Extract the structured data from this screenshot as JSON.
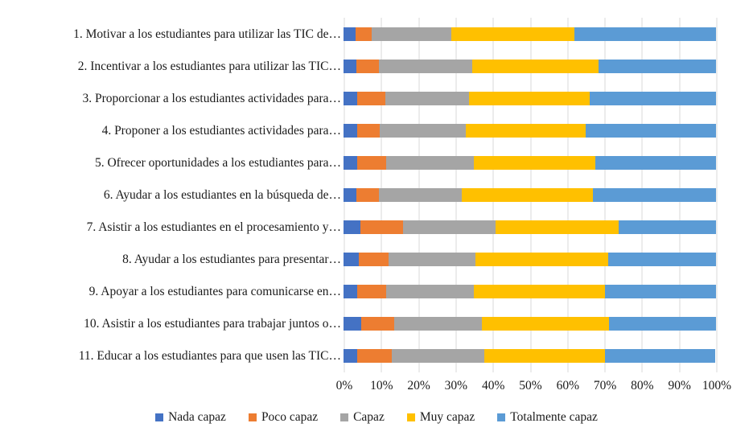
{
  "chart_data": {
    "type": "bar",
    "orientation": "horizontal",
    "stacked": true,
    "stack_mode": "100%",
    "title": "",
    "xlabel": "",
    "ylabel": "",
    "grid": true,
    "grid_color": "#d9d9d9",
    "xlim": [
      0,
      100
    ],
    "categories": [
      "1. Motivar a los estudiantes para utilizar las TIC de…",
      "2. Incentivar a los estudiantes para utilizar las TIC…",
      "3. Proporcionar a los estudiantes actividades para…",
      "4. Proponer a los estudiantes actividades para…",
      "5. Ofrecer oportunidades a los estudiantes para…",
      "6. Ayudar a los estudiantes en la búsqueda de…",
      "7. Asistir a los estudiantes en el procesamiento y…",
      "8. Ayudar a los estudiantes para presentar…",
      "9. Apoyar a los estudiantes para comunicarse en…",
      "10. Asistir a los estudiantes para trabajar juntos o…",
      "11. Educar a los estudiantes para que usen las TIC…"
    ],
    "series": [
      {
        "name": "Nada capaz",
        "color": "#4472C4",
        "values": [
          3.3,
          3.4,
          3.6,
          3.6,
          3.6,
          3.4,
          4.5,
          4.0,
          3.7,
          4.7,
          3.7
        ]
      },
      {
        "name": "Poco capaz",
        "color": "#ED7D31",
        "values": [
          4.2,
          6.1,
          7.7,
          6.1,
          7.8,
          6.1,
          11.5,
          8.2,
          7.7,
          9.0,
          9.2
        ]
      },
      {
        "name": "Capaz",
        "color": "#A5A5A5",
        "values": [
          21.5,
          25.0,
          22.4,
          23.2,
          23.5,
          22.3,
          24.9,
          23.3,
          23.6,
          23.4,
          24.9
        ]
      },
      {
        "name": "Muy capaz",
        "color": "#FFC000",
        "values": [
          33.0,
          34.0,
          32.5,
          32.2,
          32.7,
          35.1,
          33.0,
          35.5,
          35.1,
          34.1,
          32.3
        ]
      },
      {
        "name": "Totalmente capaz",
        "color": "#5B9BD5",
        "values": [
          38.0,
          31.5,
          33.8,
          34.9,
          32.4,
          33.1,
          26.1,
          29.0,
          29.9,
          28.8,
          29.6
        ]
      }
    ],
    "x_axis": {
      "tick_labels": [
        "0%",
        "10%",
        "20%",
        "30%",
        "40%",
        "50%",
        "60%",
        "70%",
        "80%",
        "90%",
        "100%"
      ],
      "tick_values": [
        0,
        10,
        20,
        30,
        40,
        50,
        60,
        70,
        80,
        90,
        100
      ]
    },
    "legend": {
      "position": "bottom",
      "labels": [
        "Nada capaz",
        "Poco capaz",
        "Capaz",
        "Muy capaz",
        "Totalmente capaz"
      ]
    }
  }
}
